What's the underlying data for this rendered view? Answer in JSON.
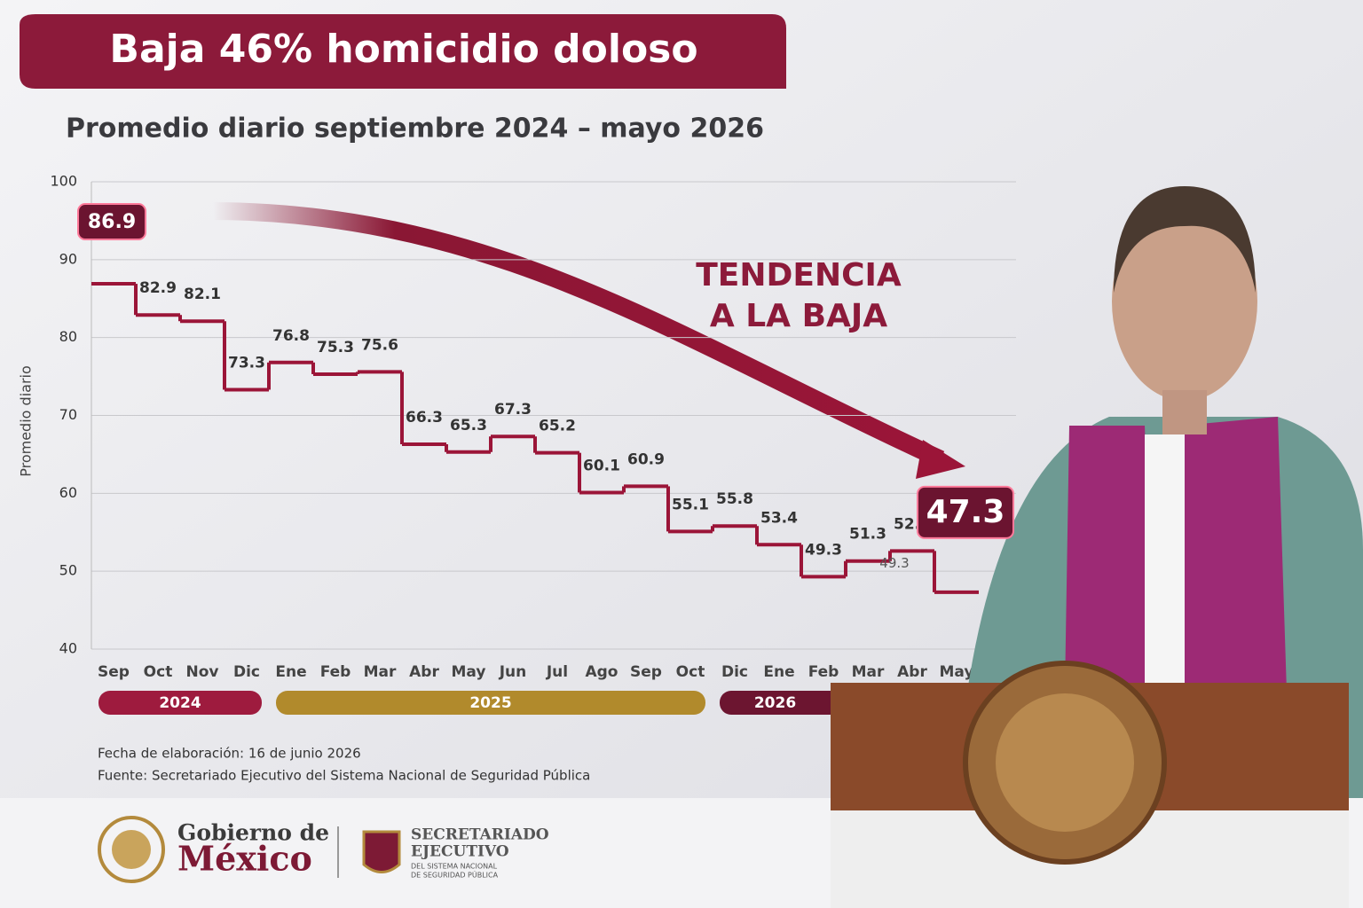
{
  "chart_data": {
    "type": "step",
    "title": "Baja 46% homicidio doloso",
    "subtitle": "Promedio diario septiembre 2024 – mayo 2026",
    "y_label": "Promedio diario",
    "categories": [
      "Sep",
      "Oct",
      "Nov",
      "Dic",
      "Ene",
      "Feb",
      "Mar",
      "Abr",
      "May",
      "Jun",
      "Jul",
      "Ago",
      "Sep",
      "Oct",
      "Dic",
      "Ene",
      "Feb",
      "Mar",
      "Abr",
      "May"
    ],
    "values": [
      86.9,
      82.9,
      82.1,
      73.3,
      76.8,
      75.3,
      75.6,
      66.3,
      65.3,
      67.3,
      65.2,
      60.1,
      60.9,
      55.1,
      55.8,
      53.4,
      49.3,
      51.3,
      52.6,
      47.3
    ],
    "colors": [
      "#b0123e",
      "#b0123e",
      "#b0123e",
      "#b0123e",
      "#d4a017",
      "#d4a017",
      "#d4a017",
      "#d4a017",
      "#d4a017",
      "#d4a017",
      "#d4a017",
      "#d4a017",
      "#d4a017",
      "#d4a017",
      "#b0123e",
      "#b0123e",
      "#b0123e",
      "#b0123e",
      "#b0123e",
      "#b0123e"
    ],
    "ylim": [
      40,
      100
    ],
    "yticks": [
      40,
      50,
      60,
      70,
      80,
      90,
      100
    ],
    "grid": true,
    "years": [
      {
        "label": "2024",
        "color": "#9e1b3e",
        "span": [
          0,
          3
        ]
      },
      {
        "label": "2025",
        "color": "#b18a2c",
        "span": [
          4,
          13
        ]
      },
      {
        "label": "2026",
        "color": "#6c1530",
        "span": [
          14,
          19
        ]
      }
    ],
    "annotation": [
      "TENDENCIA",
      "A LA BAJA"
    ],
    "extra_label": "49.3",
    "notes": [
      "Fecha de elaboración: 16 de junio 2026",
      "Fuente: Secretariado Ejecutivo del Sistema Nacional de Seguridad Pública"
    ]
  },
  "footer": {
    "gob_line1": "Gobierno de",
    "gob_line2": "México",
    "se_line1": "SECRETARIADO",
    "se_line2": "EJECUTIVO",
    "se_line3": "DEL SISTEMA NACIONAL",
    "se_line4": "DE SEGURIDAD PÚBLICA"
  }
}
